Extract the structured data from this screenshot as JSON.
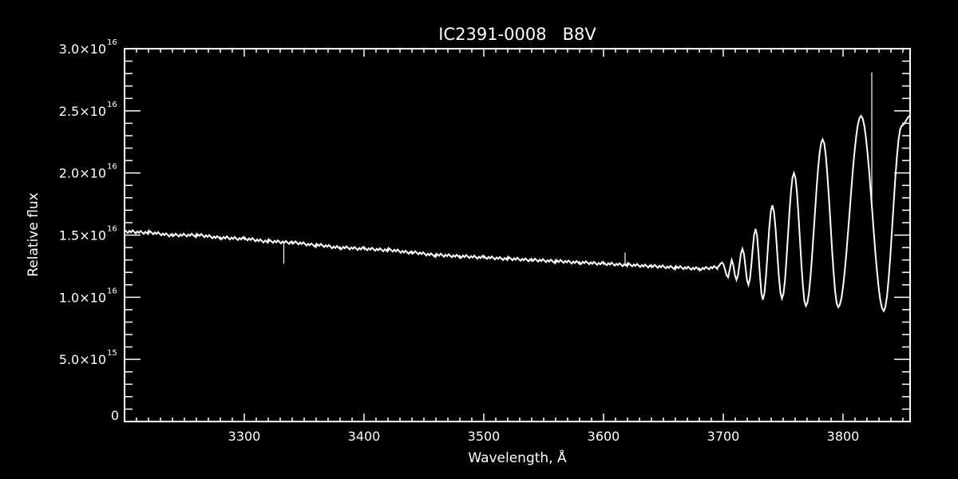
{
  "chart_data": {
    "type": "line",
    "title": "IC2391-0008   B8V",
    "xlabel": "Wavelength, Å",
    "ylabel": "Relative flux",
    "xlim": [
      3200,
      3856
    ],
    "ylim": [
      0,
      3e+16
    ],
    "x_ticks": [
      3300,
      3400,
      3500,
      3600,
      3700,
      3800
    ],
    "x_tick_labels": [
      "3300",
      "3400",
      "3500",
      "3600",
      "3700",
      "3800"
    ],
    "y_ticks": [
      0,
      5000000000000000.0,
      1e+16,
      1.5e+16,
      2e+16,
      2.5e+16,
      3e+16
    ],
    "y_tick_labels": [
      {
        "mant": "0",
        "exp": ""
      },
      {
        "mant": "5.0×10",
        "exp": "15"
      },
      {
        "mant": "1.0×10",
        "exp": "16"
      },
      {
        "mant": "1.5×10",
        "exp": "16"
      },
      {
        "mant": "2.0×10",
        "exp": "16"
      },
      {
        "mant": "2.5×10",
        "exp": "16"
      },
      {
        "mant": "3.0×10",
        "exp": "16"
      }
    ],
    "grid": false,
    "line_color": "#ffffff",
    "background": "#000000",
    "series": [
      {
        "x": [
          3200,
          3220,
          3240,
          3260,
          3280,
          3300,
          3320,
          3340,
          3360,
          3380,
          3400,
          3420,
          3440,
          3460,
          3480,
          3500,
          3520,
          3540,
          3560,
          3580,
          3600,
          3620,
          3640,
          3660,
          3680,
          3695,
          3699,
          3704,
          3707,
          3711,
          3716,
          3721,
          3727,
          3733,
          3741,
          3749,
          3759,
          3769,
          3783,
          3796,
          3815,
          3834,
          3849,
          3856
        ],
        "y": [
          1.53e+16,
          1.52e+16,
          1.5e+16,
          1.5e+16,
          1.48e+16,
          1.47e+16,
          1.45e+16,
          1.44e+16,
          1.42e+16,
          1.4e+16,
          1.39e+16,
          1.38e+16,
          1.36e+16,
          1.34e+16,
          1.33e+16,
          1.32e+16,
          1.31e+16,
          1.3e+16,
          1.29e+16,
          1.28e+16,
          1.27e+16,
          1.26e+16,
          1.25e+16,
          1.24e+16,
          1.23e+16,
          1.24e+16,
          1.28e+16,
          1.16e+16,
          1.3e+16,
          1.14e+16,
          1.39e+16,
          1.1e+16,
          1.55e+16,
          9800000000000000.0,
          1.74e+16,
          9900000000000000.0,
          2e+16,
          9300000000000000.0,
          2.27e+16,
          9200000000000000.0,
          2.46e+16,
          8900000000000000.0,
          2.38e+16,
          2.46e+16
        ]
      }
    ],
    "spikes": [
      {
        "x": 3333,
        "y": 1.27e+16
      },
      {
        "x": 3618,
        "y": 1.36e+16
      },
      {
        "x": 3824,
        "y": 2.81e+16
      }
    ]
  }
}
